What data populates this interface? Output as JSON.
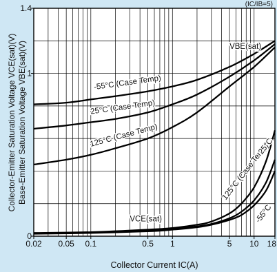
{
  "chart_data": {
    "type": "line",
    "title": "",
    "corner_note": "(IC/IB=5)",
    "xlabel": "Collector Current IC(A)",
    "ylabel_lines": [
      "Collector-Emitter Saturation Voltage VCE(sat)(V)",
      "Base-Emitter Saturation Voltage VBE(sat)(V)"
    ],
    "x_scale": "log",
    "xlim": [
      0.02,
      18
    ],
    "ylim": [
      0,
      1.4
    ],
    "grid": true,
    "x_ticks": [
      {
        "v": 0.02,
        "label": "0.02"
      },
      {
        "v": 0.05,
        "label": "0.05"
      },
      {
        "v": 0.1,
        "label": "0.1"
      },
      {
        "v": 0.5,
        "label": "0.5"
      },
      {
        "v": 1,
        "label": "1"
      },
      {
        "v": 5,
        "label": "5"
      },
      {
        "v": 10,
        "label": "10"
      },
      {
        "v": 18,
        "label": "18"
      }
    ],
    "y_ticks": [
      {
        "v": 0,
        "label": "0"
      },
      {
        "v": 1,
        "label": "1"
      },
      {
        "v": 1.4,
        "label": "1.4"
      }
    ],
    "series": [
      {
        "group": "VBE(sat)",
        "name": "-55°C (Case Temp)",
        "color": "#000000",
        "x": [
          0.02,
          0.05,
          0.1,
          0.2,
          0.5,
          1,
          2,
          5,
          10,
          18
        ],
        "y": [
          0.81,
          0.82,
          0.84,
          0.86,
          0.89,
          0.92,
          0.96,
          1.04,
          1.12,
          1.2
        ]
      },
      {
        "group": "VBE(sat)",
        "name": "25°C (Case Temp)",
        "color": "#000000",
        "x": [
          0.02,
          0.05,
          0.1,
          0.2,
          0.5,
          1,
          2,
          5,
          10,
          18
        ],
        "y": [
          0.66,
          0.68,
          0.7,
          0.72,
          0.76,
          0.81,
          0.87,
          0.98,
          1.08,
          1.18
        ]
      },
      {
        "group": "VBE(sat)",
        "name": "125°C (Case Temp)",
        "color": "#000000",
        "x": [
          0.02,
          0.05,
          0.1,
          0.2,
          0.5,
          1,
          2,
          5,
          10,
          18
        ],
        "y": [
          0.44,
          0.47,
          0.5,
          0.54,
          0.6,
          0.67,
          0.76,
          0.92,
          1.04,
          1.16
        ]
      },
      {
        "group": "VCE(sat)",
        "name": "125°C (Case Temp)",
        "color": "#000000",
        "x": [
          0.02,
          0.1,
          0.5,
          1,
          2,
          3,
          5,
          7,
          10,
          14,
          18
        ],
        "y": [
          0.02,
          0.025,
          0.04,
          0.05,
          0.07,
          0.09,
          0.14,
          0.2,
          0.3,
          0.46,
          0.65
        ]
      },
      {
        "group": "VCE(sat)",
        "name": "25°C",
        "color": "#000000",
        "x": [
          0.02,
          0.1,
          0.5,
          1,
          2,
          3,
          5,
          7,
          10,
          14,
          18
        ],
        "y": [
          0.018,
          0.022,
          0.035,
          0.045,
          0.06,
          0.075,
          0.11,
          0.15,
          0.22,
          0.33,
          0.47
        ]
      },
      {
        "group": "VCE(sat)",
        "name": "-55°C",
        "color": "#000000",
        "x": [
          0.02,
          0.1,
          0.5,
          1,
          2,
          3,
          5,
          7,
          10,
          14,
          18
        ],
        "y": [
          0.015,
          0.02,
          0.03,
          0.04,
          0.055,
          0.07,
          0.1,
          0.13,
          0.19,
          0.28,
          0.4
        ]
      }
    ],
    "annotations": [
      {
        "text": "VBE(sat)",
        "at": [
          5,
          1.15
        ],
        "rotate": 0
      },
      {
        "text": "-55°C (Case Temp)",
        "at": [
          0.11,
          0.9
        ],
        "rotate": -8
      },
      {
        "text": "25°C (Case Temp)",
        "at": [
          0.1,
          0.75
        ],
        "rotate": -8
      },
      {
        "text": "125°C (Case Temp)",
        "at": [
          0.1,
          0.55
        ],
        "rotate": -15
      },
      {
        "text": "VCE(sat)",
        "at": [
          0.3,
          0.09
        ],
        "rotate": 0
      },
      {
        "text": "125°C (Case Temp)",
        "at": [
          4.5,
          0.22
        ],
        "rotate": -52
      },
      {
        "text": "25°C",
        "at": [
          12.5,
          0.5
        ],
        "rotate": -52
      },
      {
        "text": "-55°C",
        "at": [
          11.5,
          0.08
        ],
        "rotate": -52
      }
    ]
  }
}
